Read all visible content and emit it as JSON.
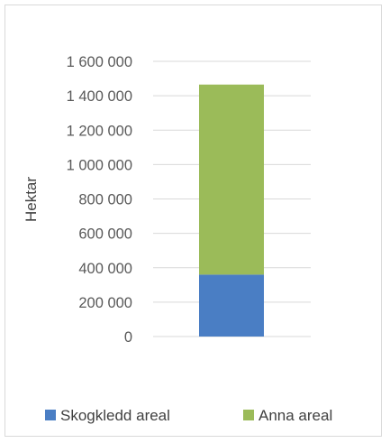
{
  "chart_data": {
    "type": "bar",
    "stacked": true,
    "categories": [
      ""
    ],
    "series": [
      {
        "name": "Skogkledd areal",
        "values": [
          360000
        ],
        "color": "#4a7ec4"
      },
      {
        "name": "Anna areal",
        "values": [
          1105000
        ],
        "color": "#9bbb59"
      }
    ],
    "ylabel": "Hektar",
    "ylim": [
      0,
      1600000
    ],
    "yticks": [
      0,
      200000,
      400000,
      600000,
      800000,
      1000000,
      1200000,
      1400000,
      1600000
    ],
    "ytick_labels": [
      "0",
      "200 000",
      "400 000",
      "600 000",
      "800 000",
      "1 000 000",
      "1 200 000",
      "1 400 000",
      "1 600 000"
    ],
    "grid": true,
    "legend_position": "bottom",
    "gridline_color": "#d9d9d9"
  }
}
